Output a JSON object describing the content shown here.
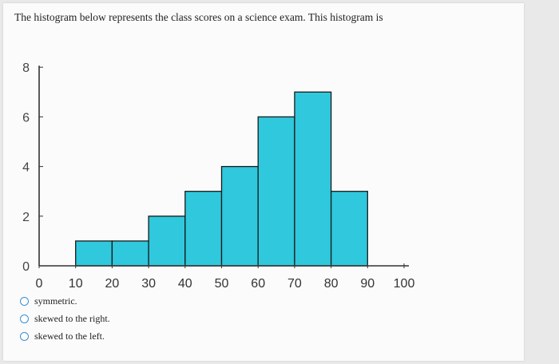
{
  "question": "The histogram below represents the class scores on a science exam. This histogram is",
  "options": [
    "symmetric.",
    "skewed to the right.",
    "skewed to the left."
  ],
  "colors": {
    "bar_fill": "#2fc8dc",
    "bar_stroke": "#1a1a1a",
    "axis": "#333333"
  },
  "chart_data": {
    "type": "bar",
    "bins": [
      {
        "start": 10,
        "end": 20,
        "value": 1
      },
      {
        "start": 20,
        "end": 30,
        "value": 1
      },
      {
        "start": 30,
        "end": 40,
        "value": 2
      },
      {
        "start": 40,
        "end": 50,
        "value": 3
      },
      {
        "start": 50,
        "end": 60,
        "value": 4
      },
      {
        "start": 60,
        "end": 70,
        "value": 6
      },
      {
        "start": 70,
        "end": 80,
        "value": 7
      },
      {
        "start": 80,
        "end": 90,
        "value": 3
      }
    ],
    "xticks": [
      "0",
      "10",
      "20",
      "30",
      "40",
      "50",
      "60",
      "70",
      "80",
      "90",
      "100"
    ],
    "yticks": [
      "0",
      "2",
      "4",
      "6",
      "8"
    ],
    "xlim": [
      0,
      100
    ],
    "ylim": [
      0,
      8
    ]
  }
}
